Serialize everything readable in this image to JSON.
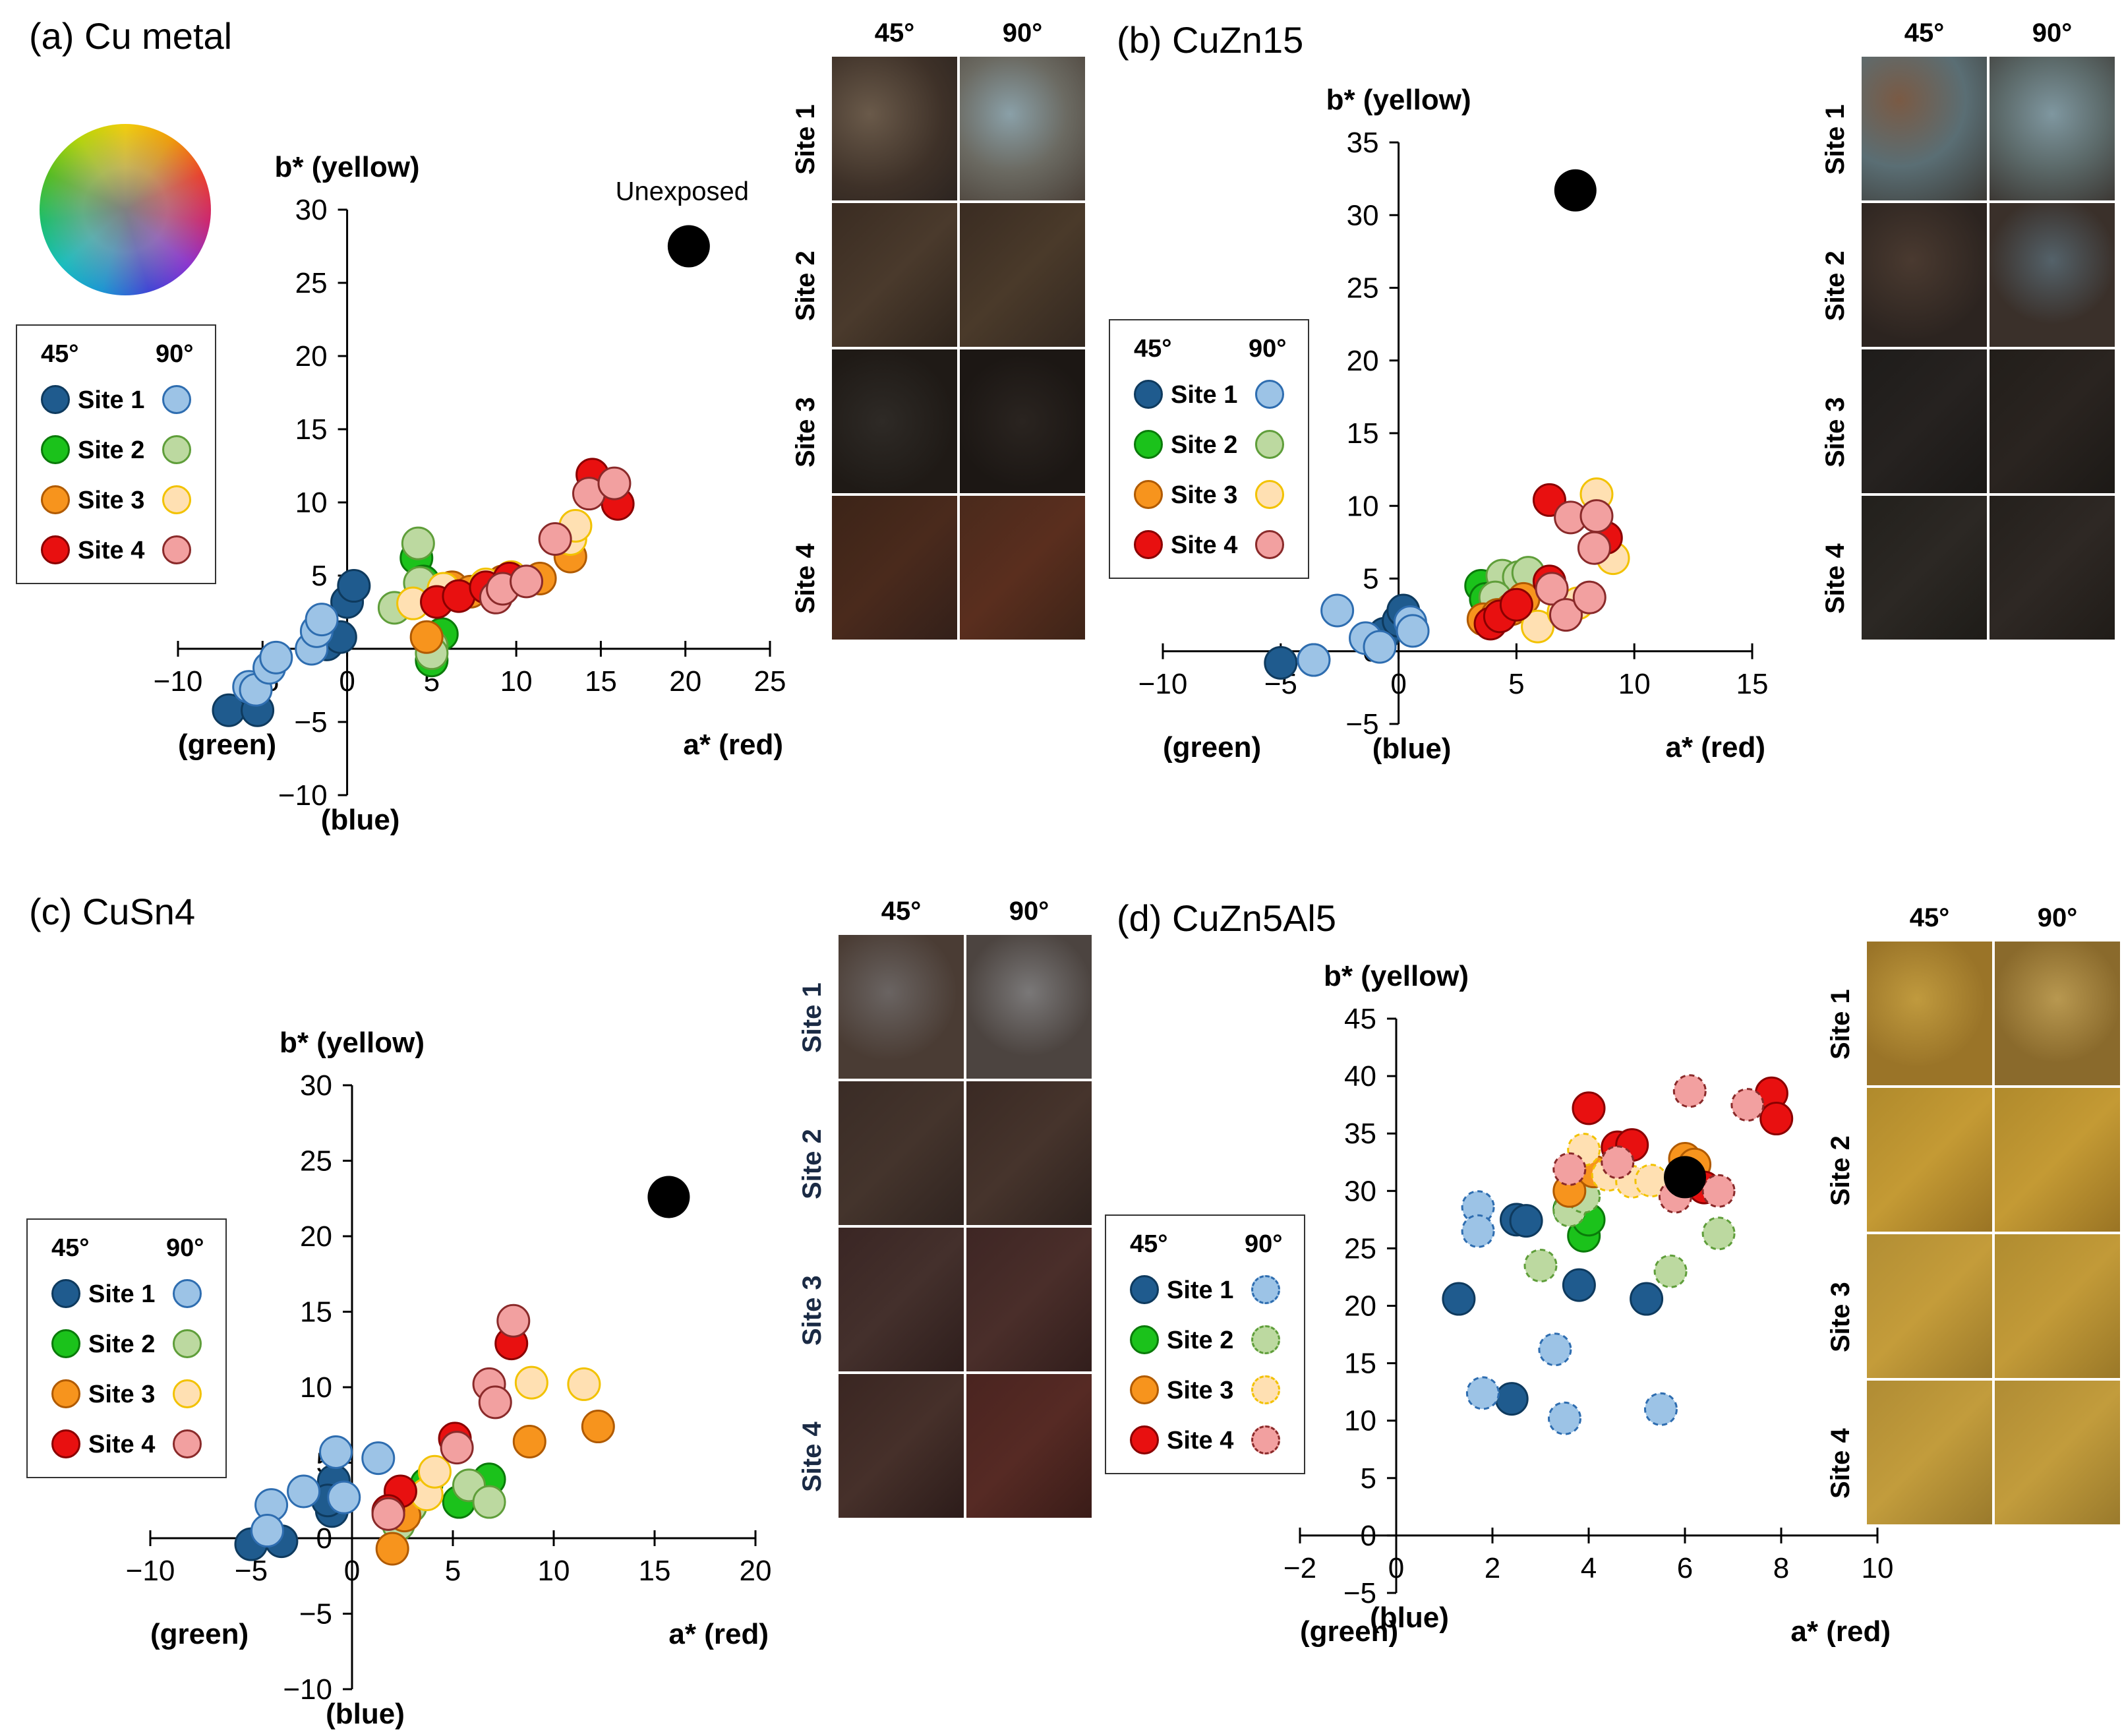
{
  "common": {
    "x_axis_label": "a* (red)",
    "y_axis_label": "b* (yellow)",
    "green_label": "(green)",
    "blue_label": "(blue)",
    "legend_45": "45°",
    "legend_90": "90°",
    "site_labels": [
      "Site 1",
      "Site 2",
      "Site 3",
      "Site 4"
    ],
    "photo_col_45": "45°",
    "photo_col_90": "90°"
  },
  "colors": {
    "s1_45": "#1f5b8e",
    "s1_90": "#9cc3e6",
    "s2_45": "#1bc21b",
    "s2_90": "#bcd9a0",
    "s3_45": "#f7941d",
    "s3_90": "#ffe0b2",
    "s4_45": "#e81010",
    "s4_90": "#f2a0a0",
    "unexposed": "#000000"
  },
  "panels": [
    {
      "id": "a",
      "title": "(a) Cu metal",
      "annotation": "Unexposed"
    },
    {
      "id": "b",
      "title": "(b) CuZn15"
    },
    {
      "id": "c",
      "title": "(c) CuSn4"
    },
    {
      "id": "d",
      "title": "(d) CuZn5Al5"
    }
  ],
  "chart_data": [
    {
      "type": "scatter",
      "title": "(a) Cu metal",
      "xlabel": "a* (red)",
      "ylabel": "b* (yellow)",
      "xlim": [
        -10,
        25
      ],
      "ylim": [
        -10,
        30
      ],
      "xticks": [
        -10,
        -5,
        0,
        5,
        10,
        15,
        20,
        25
      ],
      "yticks": [
        -10,
        -5,
        0,
        5,
        10,
        15,
        20,
        25,
        30
      ],
      "unexposed": {
        "x": 20.2,
        "y": 27.5,
        "label": "Unexposed"
      },
      "series": [
        {
          "name": "Site 1 45°",
          "key": "s1_45",
          "points": [
            [
              -7,
              -4.2
            ],
            [
              -5.3,
              -4.2
            ],
            [
              -1.2,
              0.3
            ],
            [
              -0.4,
              0.8
            ],
            [
              0,
              3.2
            ],
            [
              0.4,
              4.3
            ]
          ]
        },
        {
          "name": "Site 1 90°",
          "key": "s1_90",
          "points": [
            [
              -5.8,
              -2.6
            ],
            [
              -5.4,
              -2.8
            ],
            [
              -4.6,
              -1.3
            ],
            [
              -4.2,
              -0.6
            ],
            [
              -2.1,
              0
            ],
            [
              -1.8,
              1.2
            ],
            [
              -1.5,
              2
            ]
          ]
        },
        {
          "name": "Site 2 45°",
          "key": "s2_45",
          "points": [
            [
              4.1,
              6.2
            ],
            [
              4.5,
              4.6
            ],
            [
              5,
              -0.8
            ],
            [
              5.6,
              1
            ],
            [
              4.8,
              3.8
            ]
          ]
        },
        {
          "name": "Site 2 90°",
          "key": "s2_90",
          "points": [
            [
              4.2,
              7.2
            ],
            [
              2.8,
              2.8
            ],
            [
              4.3,
              4.5
            ],
            [
              5,
              0.2
            ],
            [
              5,
              -0.3
            ]
          ]
        },
        {
          "name": "Site 3 45°",
          "key": "s3_45",
          "points": [
            [
              4.7,
              0.8
            ],
            [
              6.2,
              4.2
            ],
            [
              7.3,
              3.9
            ],
            [
              9.2,
              4.6
            ],
            [
              11.4,
              4.8
            ],
            [
              13.2,
              6.3
            ]
          ]
        },
        {
          "name": "Site 3 90°",
          "key": "s3_90",
          "points": [
            [
              3.9,
              3.1
            ],
            [
              5.7,
              4.1
            ],
            [
              8.2,
              4.4
            ],
            [
              9.7,
              4.9
            ],
            [
              13.2,
              7.5
            ],
            [
              13.5,
              8.4
            ]
          ]
        },
        {
          "name": "Site 4 45°",
          "key": "s4_45",
          "points": [
            [
              5.3,
              3.2
            ],
            [
              6.6,
              3.6
            ],
            [
              8.2,
              4.2
            ],
            [
              9.6,
              4.8
            ],
            [
              14.5,
              11.9
            ],
            [
              16,
              9.9
            ]
          ]
        },
        {
          "name": "Site 4 90°",
          "key": "s4_90",
          "points": [
            [
              8.8,
              3.5
            ],
            [
              9.2,
              4.1
            ],
            [
              10.6,
              4.6
            ],
            [
              12.3,
              7.5
            ],
            [
              14.3,
              10.6
            ],
            [
              15.8,
              11.3
            ]
          ]
        }
      ]
    },
    {
      "type": "scatter",
      "title": "(b) CuZn15",
      "xlabel": "a* (red)",
      "ylabel": "b* (yellow)",
      "xlim": [
        -10,
        15
      ],
      "ylim": [
        -5,
        35
      ],
      "xticks": [
        -10,
        -5,
        0,
        5,
        10,
        15
      ],
      "yticks": [
        -5,
        0,
        5,
        10,
        15,
        20,
        25,
        30,
        35
      ],
      "unexposed": {
        "x": 7.5,
        "y": 31.7
      },
      "series": [
        {
          "name": "Site 1 45°",
          "key": "s1_45",
          "points": [
            [
              -5,
              -0.8
            ],
            [
              -3.6,
              -0.6
            ],
            [
              -0.6,
              1.2
            ],
            [
              0,
              2.1
            ],
            [
              0.2,
              2.8
            ]
          ]
        },
        {
          "name": "Site 1 90°",
          "key": "s1_90",
          "points": [
            [
              -2.6,
              2.8
            ],
            [
              -3.6,
              -0.6
            ],
            [
              -1.4,
              0.9
            ],
            [
              -0.8,
              0.3
            ],
            [
              0.5,
              2
            ],
            [
              0.6,
              1.4
            ]
          ]
        },
        {
          "name": "Site 2 45°",
          "key": "s2_45",
          "points": [
            [
              3.5,
              4.5
            ],
            [
              3.7,
              3.6
            ],
            [
              4.2,
              3.9
            ],
            [
              4.8,
              4.3
            ]
          ]
        },
        {
          "name": "Site 2 90°",
          "key": "s2_90",
          "points": [
            [
              4.4,
              5.2
            ],
            [
              5.1,
              5.1
            ],
            [
              5.5,
              5.4
            ],
            [
              4.1,
              3.7
            ]
          ]
        },
        {
          "name": "Site 3 45°",
          "key": "s3_45",
          "points": [
            [
              3.6,
              2.2
            ],
            [
              4.2,
              2.5
            ],
            [
              4.8,
              2.9
            ],
            [
              5.3,
              3.6
            ]
          ]
        },
        {
          "name": "Site 3 90°",
          "key": "s3_90",
          "points": [
            [
              5.9,
              1.7
            ],
            [
              7,
              2.7
            ],
            [
              7.6,
              3.3
            ],
            [
              8.4,
              10.8
            ],
            [
              9.1,
              6.4
            ]
          ]
        },
        {
          "name": "Site 4 45°",
          "key": "s4_45",
          "points": [
            [
              3.9,
              1.9
            ],
            [
              4.3,
              2.4
            ],
            [
              5,
              3.2
            ],
            [
              6.4,
              4.8
            ],
            [
              6.4,
              10.4
            ],
            [
              8.8,
              7.8
            ]
          ]
        },
        {
          "name": "Site 4 90°",
          "key": "s4_90",
          "points": [
            [
              6.5,
              4.3
            ],
            [
              7.1,
              2.5
            ],
            [
              7.3,
              9.2
            ],
            [
              8.1,
              3.7
            ],
            [
              8.4,
              9.3
            ],
            [
              8.3,
              7.1
            ]
          ]
        }
      ]
    },
    {
      "type": "scatter",
      "title": "(c) CuSn4",
      "xlabel": "a* (red)",
      "ylabel": "b* (yellow)",
      "xlim": [
        -10,
        20
      ],
      "ylim": [
        -10,
        30
      ],
      "xticks": [
        -10,
        -5,
        0,
        5,
        10,
        15,
        20
      ],
      "yticks": [
        -10,
        -5,
        0,
        5,
        10,
        15,
        20,
        25,
        30
      ],
      "unexposed": {
        "x": 15.7,
        "y": 22.6
      },
      "series": [
        {
          "name": "Site 1 45°",
          "key": "s1_45",
          "points": [
            [
              -5,
              -0.4
            ],
            [
              -3.5,
              -0.2
            ],
            [
              -1,
              1.8
            ],
            [
              -0.9,
              3.8
            ],
            [
              -1.2,
              2.5
            ]
          ]
        },
        {
          "name": "Site 1 90°",
          "key": "s1_90",
          "points": [
            [
              -4,
              2.2
            ],
            [
              -4.2,
              0.5
            ],
            [
              -2.4,
              3.1
            ],
            [
              -0.8,
              5.7
            ],
            [
              -0.4,
              2.7
            ],
            [
              1.3,
              5.3
            ]
          ]
        },
        {
          "name": "Site 2 45°",
          "key": "s2_45",
          "points": [
            [
              3.7,
              3.6
            ],
            [
              5.3,
              2.4
            ],
            [
              6.8,
              3.9
            ]
          ]
        },
        {
          "name": "Site 2 90°",
          "key": "s2_90",
          "points": [
            [
              2.3,
              0.9
            ],
            [
              5.8,
              3.5
            ],
            [
              6.8,
              2.4
            ],
            [
              2.9,
              2.1
            ]
          ]
        },
        {
          "name": "Site 3 45°",
          "key": "s3_45",
          "points": [
            [
              2,
              -0.7
            ],
            [
              2.6,
              1.5
            ],
            [
              8.8,
              6.4
            ],
            [
              12.2,
              7.4
            ]
          ]
        },
        {
          "name": "Site 3 90°",
          "key": "s3_90",
          "points": [
            [
              3.7,
              2.9
            ],
            [
              4.1,
              4.4
            ],
            [
              8.9,
              10.3
            ],
            [
              11.5,
              10.2
            ]
          ]
        },
        {
          "name": "Site 4 45°",
          "key": "s4_45",
          "points": [
            [
              2.4,
              3.1
            ],
            [
              5.1,
              6.6
            ],
            [
              7.9,
              12.9
            ],
            [
              1.8,
              1.8
            ]
          ]
        },
        {
          "name": "Site 4 90°",
          "key": "s4_90",
          "points": [
            [
              1.8,
              1.6
            ],
            [
              5.2,
              6
            ],
            [
              6.8,
              10.2
            ],
            [
              7.1,
              9
            ],
            [
              8,
              14.4
            ]
          ]
        }
      ]
    },
    {
      "type": "scatter",
      "title": "(d) CuZn5Al5",
      "xlabel": "a* (red)",
      "ylabel": "b* (yellow)",
      "xlim": [
        -2,
        10
      ],
      "ylim": [
        -5,
        45
      ],
      "xticks": [
        -2,
        0,
        2,
        4,
        6,
        8,
        10
      ],
      "yticks": [
        -5,
        0,
        5,
        10,
        15,
        20,
        25,
        30,
        35,
        40,
        45
      ],
      "unexposed": {
        "x": 6,
        "y": 31.2
      },
      "series": [
        {
          "name": "Site 1 45°",
          "key": "s1_45",
          "points": [
            [
              1.3,
              20.6
            ],
            [
              2.4,
              11.9
            ],
            [
              2.5,
              27.5
            ],
            [
              2.7,
              27.4
            ],
            [
              3.8,
              21.8
            ],
            [
              5.2,
              20.6
            ]
          ]
        },
        {
          "name": "Site 1 90°",
          "key": "s1_90",
          "points": [
            [
              1.7,
              28.6
            ],
            [
              1.7,
              26.5
            ],
            [
              1.8,
              12.4
            ],
            [
              3.3,
              16.2
            ],
            [
              3.5,
              10.2
            ],
            [
              5.5,
              11
            ]
          ]
        },
        {
          "name": "Site 2 45°",
          "key": "s2_45",
          "points": [
            [
              3.9,
              26.1
            ],
            [
              4,
              27.5
            ],
            [
              3.6,
              28.4
            ]
          ]
        },
        {
          "name": "Site 2 90°",
          "key": "s2_90",
          "points": [
            [
              3,
              23.5
            ],
            [
              3.6,
              28.3
            ],
            [
              3.9,
              29.5
            ],
            [
              5.7,
              23
            ],
            [
              6.7,
              26.3
            ]
          ]
        },
        {
          "name": "Site 3 45°",
          "key": "s3_45",
          "points": [
            [
              3.6,
              30
            ],
            [
              4.1,
              31.7
            ],
            [
              6,
              32.8
            ],
            [
              6.2,
              32.3
            ]
          ]
        },
        {
          "name": "Site 3 90°",
          "key": "s3_90",
          "points": [
            [
              3.9,
              33.6
            ],
            [
              4.4,
              31.4
            ],
            [
              4.9,
              30.8
            ],
            [
              5.3,
              30.9
            ]
          ]
        },
        {
          "name": "Site 4 45°",
          "key": "s4_45",
          "points": [
            [
              4,
              37.2
            ],
            [
              4.6,
              33.8
            ],
            [
              4.9,
              34
            ],
            [
              6.4,
              30.3
            ],
            [
              7.8,
              38.5
            ],
            [
              7.9,
              36.3
            ]
          ]
        },
        {
          "name": "Site 4 90°",
          "key": "s4_90",
          "points": [
            [
              3.6,
              31.9
            ],
            [
              4.6,
              32.5
            ],
            [
              5.8,
              29.5
            ],
            [
              6.1,
              38.7
            ],
            [
              6.7,
              30
            ],
            [
              7.3,
              37.5
            ]
          ]
        }
      ]
    }
  ]
}
